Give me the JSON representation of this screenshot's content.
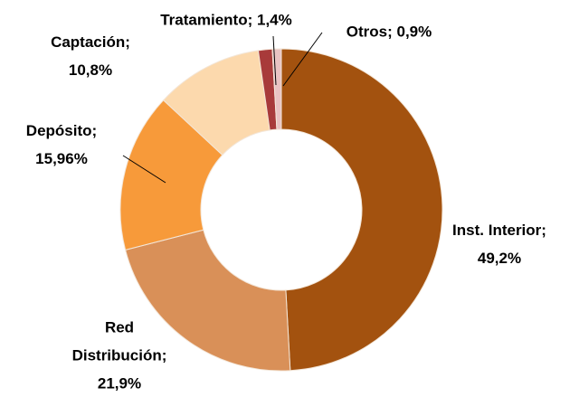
{
  "chart_data": {
    "type": "donut",
    "categories": [
      "Inst. Interior",
      "Red Distribución",
      "Depósito",
      "Captación",
      "Tratamiento",
      "Otros"
    ],
    "values": [
      49.2,
      21.9,
      15.96,
      10.8,
      1.4,
      0.9
    ],
    "value_labels": [
      "49,2%",
      "21,9%",
      "15,96%",
      "10,8%",
      "1,4%",
      "0,9%"
    ],
    "separator": ";",
    "colors": [
      "#a3520f",
      "#d99058",
      "#f79a3a",
      "#fcd9ad",
      "#a83a3a",
      "#e9c3c3"
    ]
  }
}
